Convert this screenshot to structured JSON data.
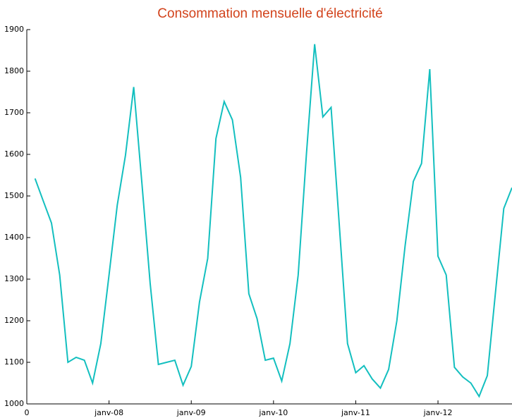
{
  "chart_data": {
    "type": "line",
    "title": "Consommation mensuelle d'électricité",
    "x": [
      1,
      2,
      3,
      4,
      5,
      6,
      7,
      8,
      9,
      10,
      11,
      12,
      13,
      14,
      15,
      16,
      17,
      18,
      19,
      20,
      21,
      22,
      23,
      24,
      25,
      26,
      27,
      28,
      29,
      30,
      31,
      32,
      33,
      34,
      35,
      36,
      37,
      38,
      39,
      40,
      41,
      42,
      43,
      44,
      45,
      46,
      47,
      48,
      49,
      50,
      51,
      52,
      53,
      54,
      55,
      56,
      57,
      58,
      59
    ],
    "series": [
      {
        "name": "Consommation",
        "color": "#13bfbf",
        "values": [
          1542,
          1488,
          1435,
          1310,
          1100,
          1112,
          1105,
          1050,
          1145,
          1310,
          1478,
          1598,
          1762,
          1530,
          1290,
          1095,
          1100,
          1105,
          1045,
          1090,
          1245,
          1350,
          1638,
          1727,
          1683,
          1545,
          1265,
          1205,
          1105,
          1110,
          1055,
          1145,
          1310,
          1600,
          1865,
          1690,
          1713,
          1430,
          1145,
          1075,
          1092,
          1060,
          1038,
          1083,
          1200,
          1380,
          1535,
          1578,
          1805,
          1355,
          1310,
          1088,
          1065,
          1050,
          1018,
          1068,
          1270,
          1470,
          1520
        ]
      }
    ],
    "xlim": [
      0,
      59
    ],
    "xticks": [
      0,
      {
        "value": 10,
        "label": "janv-08"
      },
      {
        "value": 20,
        "label": "janv-09"
      },
      {
        "value": 30,
        "label": "janv-10"
      },
      {
        "value": 40,
        "label": "janv-11"
      },
      {
        "value": 50,
        "label": "janv-12"
      }
    ],
    "ylim": [
      1000,
      1900
    ],
    "yticks": [
      1000,
      1100,
      1200,
      1300,
      1400,
      1500,
      1600,
      1700,
      1800,
      1900
    ],
    "grid": false
  }
}
